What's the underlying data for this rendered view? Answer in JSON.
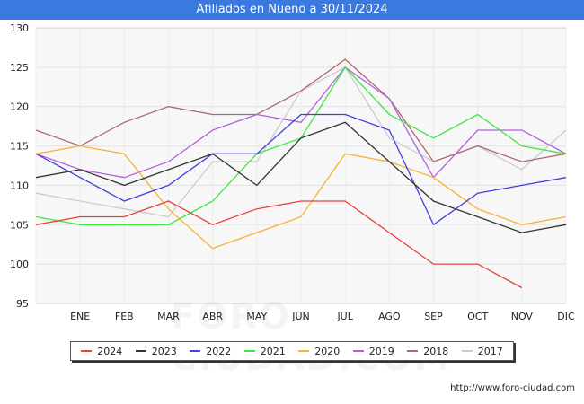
{
  "title": "Afiliados en Nueno a 30/11/2024",
  "footer_url": "http://www.foro-ciudad.com",
  "watermark": "FORO-CIUDAD.COM",
  "chart_data": {
    "type": "line",
    "categories": [
      "",
      "ENE",
      "FEB",
      "MAR",
      "ABR",
      "MAY",
      "JUN",
      "JUL",
      "AGO",
      "SEP",
      "OCT",
      "NOV",
      "DIC"
    ],
    "ylim": [
      95,
      130
    ],
    "yticks": [
      95,
      100,
      105,
      110,
      115,
      120,
      125,
      130
    ],
    "grid": true,
    "legend_position": "bottom",
    "series": [
      {
        "name": "2024",
        "color": "#e8413c",
        "values": [
          105,
          106,
          106,
          108,
          105,
          107,
          108,
          108,
          104,
          100,
          100,
          97,
          null
        ]
      },
      {
        "name": "2023",
        "color": "#333333",
        "values": [
          111,
          112,
          110,
          112,
          114,
          110,
          116,
          118,
          113,
          108,
          106,
          104,
          105
        ]
      },
      {
        "name": "2022",
        "color": "#4040e0",
        "values": [
          114,
          111,
          108,
          110,
          114,
          114,
          119,
          119,
          117,
          105,
          109,
          110,
          111
        ]
      },
      {
        "name": "2021",
        "color": "#3ee83e",
        "values": [
          106,
          105,
          105,
          105,
          108,
          114,
          116,
          125,
          119,
          116,
          119,
          115,
          114
        ]
      },
      {
        "name": "2020",
        "color": "#f5b335",
        "values": [
          114,
          115,
          114,
          107,
          102,
          104,
          106,
          114,
          113,
          111,
          107,
          105,
          106
        ]
      },
      {
        "name": "2019",
        "color": "#b15fe0",
        "values": [
          114,
          112,
          111,
          113,
          117,
          119,
          118,
          125,
          121,
          111,
          117,
          117,
          114
        ]
      },
      {
        "name": "2018",
        "color": "#b06a6a",
        "values": [
          117,
          115,
          118,
          120,
          119,
          119,
          122,
          126,
          121,
          113,
          115,
          113,
          114
        ]
      },
      {
        "name": "2017",
        "color": "#cccccc",
        "values": [
          109,
          108,
          107,
          106,
          113,
          113,
          122,
          125,
          116,
          113,
          115,
          112,
          117
        ]
      }
    ]
  }
}
